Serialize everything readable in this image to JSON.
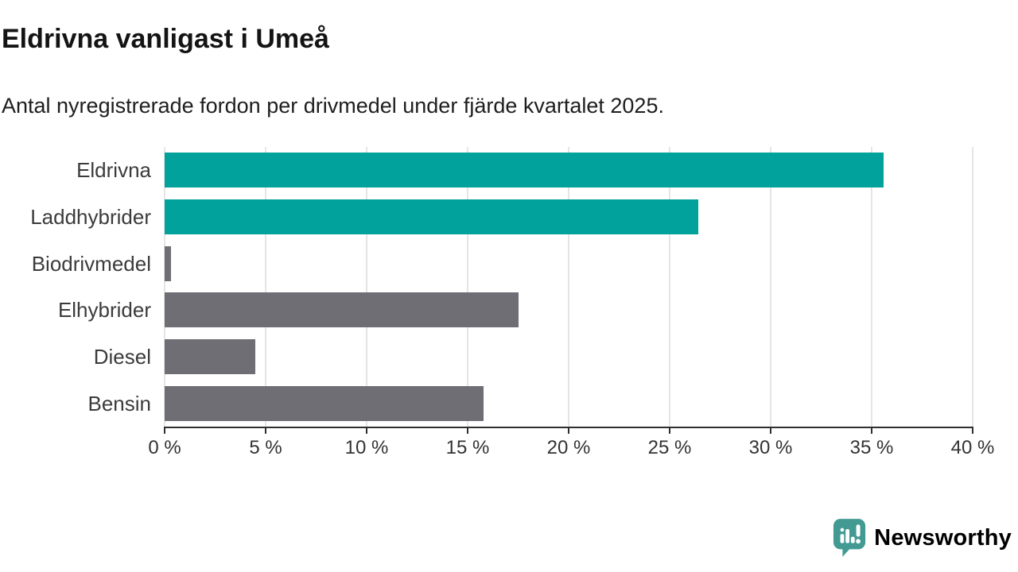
{
  "header": {
    "title": "Eldrivna vanligast i Umeå",
    "subtitle": "Antal nyregistrerade fordon per drivmedel under fjärde kvartalet 2025."
  },
  "chart_data": {
    "type": "bar",
    "orientation": "horizontal",
    "title": "Eldrivna vanligast i Umeå",
    "subtitle": "Antal nyregistrerade fordon per drivmedel under fjärde kvartalet 2025.",
    "xlabel": "",
    "ylabel": "",
    "unit": "%",
    "categories": [
      "Eldrivna",
      "Laddhybrider",
      "Biodrivmedel",
      "Elhybrider",
      "Diesel",
      "Bensin"
    ],
    "values": [
      35.6,
      26.4,
      0.3,
      17.5,
      4.5,
      15.8
    ],
    "bar_colors": [
      "#00a29b",
      "#00a29b",
      "#6e6e74",
      "#6e6e74",
      "#6e6e74",
      "#6e6e74"
    ],
    "xlim": [
      0,
      40
    ],
    "x_ticks": [
      0,
      5,
      10,
      15,
      20,
      25,
      30,
      35,
      40
    ],
    "x_tick_labels": [
      "0 %",
      "5 %",
      "10 %",
      "15 %",
      "20 %",
      "25 %",
      "30 %",
      "35 %",
      "40 %"
    ],
    "grid": true,
    "legend": "none"
  },
  "colors": {
    "highlight": "#00a29b",
    "base_gray": "#6e6e74",
    "gridline": "#e5e5e5",
    "axis": "#2f2f2f",
    "tick_text": "#333333",
    "category_text": "#3b3b3b",
    "title_text": "#141414",
    "logo": "#45968f"
  },
  "branding": {
    "logo_text": "Newsworthy",
    "logo_icon": "newsworthy-speech-bubble-barchart-icon"
  }
}
